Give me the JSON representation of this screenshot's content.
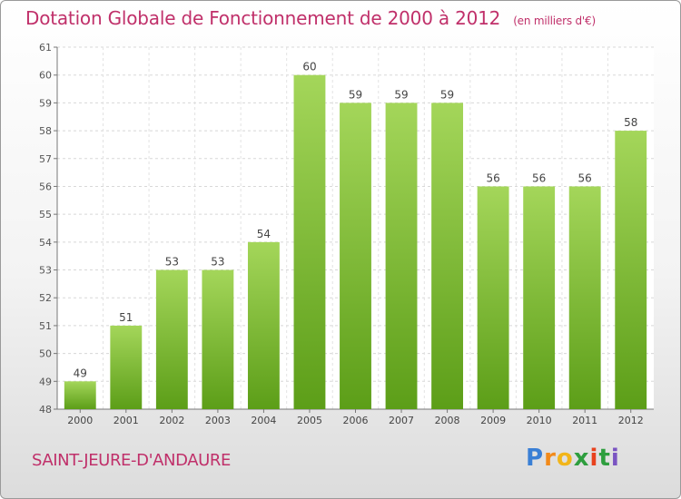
{
  "title": "Dotation Globale de Fonctionnement de 2000 à 2012",
  "unit": "(en milliers d'€)",
  "commune": "SAINT-JEURE-D'ANDAURE",
  "logo": {
    "letters": [
      "P",
      "r",
      "o",
      "x",
      "i",
      "t",
      "i"
    ],
    "colors": [
      "#3a7fd5",
      "#f28a1a",
      "#f2b51a",
      "#2e9e3e",
      "#e8421e",
      "#2e9e3e",
      "#7a54c2"
    ]
  },
  "colors": {
    "bar_top": "#a4d65a",
    "bar_bottom": "#5c9e18",
    "accent": "#c0306a"
  },
  "chart_data": {
    "type": "bar",
    "categories": [
      "2000",
      "2001",
      "2002",
      "2003",
      "2004",
      "2005",
      "2006",
      "2007",
      "2008",
      "2009",
      "2010",
      "2011",
      "2012"
    ],
    "values": [
      49,
      51,
      53,
      53,
      54,
      60,
      59,
      59,
      59,
      56,
      56,
      56,
      58
    ],
    "ylim": [
      48,
      61
    ],
    "yticks": [
      48,
      49,
      50,
      51,
      52,
      53,
      54,
      55,
      56,
      57,
      58,
      59,
      60,
      61
    ],
    "grid": true,
    "xlabel": "",
    "ylabel": ""
  }
}
